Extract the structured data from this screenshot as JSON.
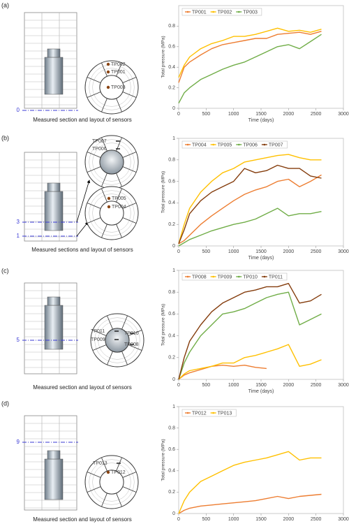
{
  "panels": [
    {
      "label": "(a)",
      "levels": [
        "0"
      ],
      "sensors": [
        "TP002",
        "TP001",
        "TP003"
      ],
      "caption": "Measured section and layout of sensors"
    },
    {
      "label": "(b)",
      "levels": [
        "3",
        "1"
      ],
      "sensors": [
        "TP007",
        "TP006",
        "TP005",
        "TP004"
      ],
      "caption": "Measured sections and layout of sensors"
    },
    {
      "label": "(c)",
      "levels": [
        "5"
      ],
      "sensors": [
        "TP011",
        "TP010",
        "TP009",
        "TP008"
      ],
      "caption": "Measured section and layout of sensors"
    },
    {
      "label": "(d)",
      "levels": [
        "9"
      ],
      "sensors": [
        "TP013",
        "TP012"
      ],
      "caption": "Measured section and layout of sensors"
    }
  ],
  "chart_data": [
    {
      "type": "line",
      "x_label": "Time (days)",
      "y_label": "Total pressure (MPa)",
      "x": [
        0,
        100,
        200,
        400,
        600,
        800,
        1000,
        1200,
        1400,
        1600,
        1800,
        2000,
        2200,
        2400,
        2600
      ],
      "series": [
        {
          "name": "TP001",
          "color": "#ed7d31",
          "values": [
            0.25,
            0.4,
            0.45,
            0.52,
            0.58,
            0.62,
            0.64,
            0.66,
            0.68,
            0.68,
            0.72,
            0.73,
            0.74,
            0.72,
            0.75
          ]
        },
        {
          "name": "TP002",
          "color": "#ffc000",
          "values": [
            0.3,
            0.42,
            0.5,
            0.58,
            0.63,
            0.66,
            0.7,
            0.7,
            0.72,
            0.75,
            0.78,
            0.75,
            0.76,
            0.74,
            0.77
          ]
        },
        {
          "name": "TP003",
          "color": "#70ad47",
          "values": [
            0.05,
            0.15,
            0.2,
            0.28,
            0.33,
            0.38,
            0.42,
            0.45,
            0.5,
            0.55,
            0.6,
            0.62,
            0.58,
            0.65,
            0.72
          ]
        }
      ],
      "xlim": [
        0,
        3000
      ],
      "xticks": [
        0,
        500,
        1000,
        1500,
        2000,
        2500,
        3000
      ],
      "ylim": [
        0,
        1
      ],
      "yticks": [
        0,
        0.2,
        0.4,
        0.6,
        0.8
      ],
      "legend": "upper left"
    },
    {
      "type": "line",
      "x_label": "Time (days)",
      "y_label": "Total pressure (MPa)",
      "x": [
        0,
        100,
        200,
        400,
        600,
        800,
        1000,
        1200,
        1400,
        1600,
        1800,
        2000,
        2200,
        2400,
        2600
      ],
      "series": [
        {
          "name": "TP004",
          "color": "#ed7d31",
          "values": [
            0.02,
            0.05,
            0.1,
            0.2,
            0.28,
            0.35,
            0.42,
            0.48,
            0.52,
            0.55,
            0.6,
            0.62,
            0.55,
            0.6,
            0.66
          ]
        },
        {
          "name": "TP005",
          "color": "#ffc000",
          "values": [
            0.02,
            0.2,
            0.35,
            0.5,
            0.6,
            0.68,
            0.72,
            0.78,
            0.8,
            0.82,
            0.84,
            0.85,
            0.82,
            0.8,
            0.8
          ]
        },
        {
          "name": "TP006",
          "color": "#70ad47",
          "values": [
            0,
            0.03,
            0.06,
            0.1,
            0.14,
            0.17,
            0.2,
            0.22,
            0.25,
            0.3,
            0.35,
            0.28,
            0.3,
            0.3,
            0.32
          ]
        },
        {
          "name": "TP007",
          "color": "#843c0c",
          "values": [
            0.02,
            0.15,
            0.3,
            0.42,
            0.5,
            0.55,
            0.6,
            0.72,
            0.68,
            0.7,
            0.75,
            0.72,
            0.72,
            0.65,
            0.63
          ]
        }
      ],
      "xlim": [
        0,
        3000
      ],
      "xticks": [
        0,
        500,
        1000,
        1500,
        2000,
        2500,
        3000
      ],
      "ylim": [
        0,
        1
      ],
      "yticks": [
        0,
        0.2,
        0.4,
        0.6,
        0.8,
        1
      ],
      "legend": "upper left"
    },
    {
      "type": "line",
      "x_label": "Time (days)",
      "y_label": "Total pressure (MPa)",
      "x": [
        0,
        100,
        200,
        400,
        600,
        800,
        1000,
        1200,
        1400,
        1600,
        1800,
        2000,
        2200,
        2400,
        2600
      ],
      "series": [
        {
          "name": "TP008",
          "color": "#ed7d31",
          "values": [
            0,
            0.04,
            0.06,
            0.09,
            0.12,
            0.13,
            0.12,
            0.13,
            0.11,
            0.1,
            null,
            null,
            null,
            null,
            null
          ]
        },
        {
          "name": "TP009",
          "color": "#ffc000",
          "values": [
            0,
            0.05,
            0.08,
            0.1,
            0.12,
            0.15,
            0.15,
            0.2,
            0.22,
            0.25,
            0.28,
            0.32,
            0.12,
            0.14,
            0.18
          ]
        },
        {
          "name": "TP010",
          "color": "#70ad47",
          "values": [
            0,
            0.15,
            0.25,
            0.4,
            0.5,
            0.6,
            0.62,
            0.65,
            0.7,
            0.75,
            0.78,
            0.8,
            0.5,
            0.55,
            0.6
          ]
        },
        {
          "name": "TP011",
          "color": "#843c0c",
          "values": [
            0,
            0.2,
            0.35,
            0.5,
            0.62,
            0.7,
            0.75,
            0.8,
            0.82,
            0.85,
            0.85,
            0.88,
            0.7,
            0.72,
            0.78
          ]
        }
      ],
      "xlim": [
        0,
        3000
      ],
      "xticks": [
        0,
        500,
        1000,
        1500,
        2000,
        2500,
        3000
      ],
      "ylim": [
        0,
        1
      ],
      "yticks": [
        0,
        0.2,
        0.4,
        0.6,
        0.8,
        1
      ],
      "legend": "upper left"
    },
    {
      "type": "line",
      "y_label": "Total pressure (MPa)",
      "x": [
        0,
        100,
        200,
        400,
        600,
        800,
        1000,
        1200,
        1400,
        1600,
        1800,
        2000,
        2200,
        2400,
        2600
      ],
      "series": [
        {
          "name": "TP012",
          "color": "#ed7d31",
          "values": [
            0,
            0.03,
            0.05,
            0.07,
            0.08,
            0.09,
            0.1,
            0.11,
            0.12,
            0.14,
            0.16,
            0.14,
            0.16,
            0.17,
            0.18
          ]
        },
        {
          "name": "TP013",
          "color": "#ffc000",
          "values": [
            0,
            0.12,
            0.2,
            0.3,
            0.35,
            0.4,
            0.45,
            0.48,
            0.5,
            0.52,
            0.55,
            0.58,
            0.5,
            0.52,
            0.52
          ]
        }
      ],
      "xlim": [
        0,
        3000
      ],
      "xticks": [
        0,
        500,
        1000,
        1500,
        2000,
        2500,
        3000
      ],
      "ylim": [
        0,
        1
      ],
      "yticks": [
        0,
        0.2,
        0.4,
        0.6,
        0.8,
        1
      ],
      "legend": "upper left"
    }
  ]
}
